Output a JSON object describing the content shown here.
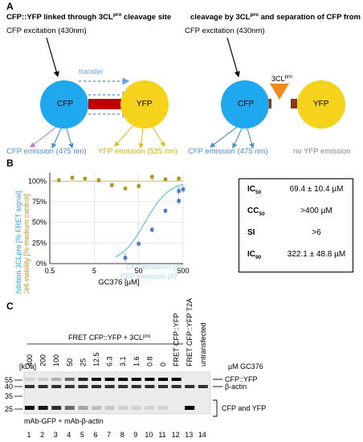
{
  "panel_a": {
    "label": "A",
    "left": {
      "title_pre": "CFP::YFP linked through 3CL",
      "title_sup": "pro",
      "title_post": " cleavage site",
      "excitation": "CFP excitation (430nm)",
      "transfer": "transfer",
      "cfp": "CFP",
      "yfp": "YFP",
      "cfp_emission": "CFP emission (475 nm)",
      "yfp_emission": "YFP emission (525 nm)"
    },
    "right": {
      "title_pre": "cleavage by 3CL",
      "title_sup": "pro",
      "title_post": " and separation of CFP from YFP",
      "excitation": "CFP excitation (430nm)",
      "protease_main": "3CL",
      "protease_sup": "pro",
      "cfp": "CFP",
      "yfp": "YFP",
      "cfp_emission": "CFP emission (475 nm)",
      "no_yfp": "no YFP emission"
    },
    "colors": {
      "cfp": "#1fa8ee",
      "yfp": "#f5d31c",
      "linker": "#c00000",
      "protease": "#f08a1e",
      "stub": "#8a3b10"
    }
  },
  "panel_b": {
    "label": "B",
    "ylabel_left": "Inhibition 3CLpro [% FRET signal]",
    "ylabel_right": "Cell viability [% medium control]",
    "xlabel": "GC376 [µM]",
    "legend_1": "CFP emission (47",
    "legend_2": "CFP emission (47",
    "table": [
      {
        "k_main": "IC",
        "k_sub": "50",
        "v": "69.4 ± 10.4 µM"
      },
      {
        "k_main": "CC",
        "k_sub": "50",
        "v": ">400 µM"
      },
      {
        "k_main": "SI",
        "k_sub": "",
        "v": ">6"
      },
      {
        "k_main": "IC",
        "k_sub": "90",
        "v": "322.1 ± 48.8 µM"
      }
    ]
  },
  "chart_data": {
    "type": "scatter",
    "xscale": "log",
    "xlim": [
      0.5,
      500
    ],
    "ylim": [
      0,
      110
    ],
    "xticks": [
      "0.5",
      "5",
      "50",
      "500"
    ],
    "yticks": [
      "0%",
      "25%",
      "50%",
      "75%",
      "100%"
    ],
    "xlabel": "GC376 [µM]",
    "ylabel": "Inhibition 3CLpro [% FRET signal]",
    "ylabel_right": "Cell viability [% medium control]",
    "grid": true,
    "series": [
      {
        "name": "",
        "color": "#4a7cc9",
        "x": [
          25,
          50,
          100,
          200,
          400
        ],
        "y": [
          7,
          24,
          41,
          64,
          76
        ],
        "err": [
          5,
          3,
          3,
          3,
          4
        ]
      },
      {
        "name": "",
        "color": "#b5941c",
        "x": [
          0.8,
          1.6,
          3.1,
          6.3,
          12.5,
          25,
          50,
          100,
          200,
          400
        ],
        "y": [
          101,
          104,
          103,
          101,
          95,
          91,
          94,
          105,
          102,
          103
        ],
        "err": [
          3,
          3,
          2,
          3,
          3,
          2,
          3,
          4,
          2,
          3
        ]
      },
      {
        "name": "",
        "color": "#4a7cc9",
        "x": [
          400,
          500
        ],
        "y": [
          88,
          90
        ],
        "err": [
          5,
          4
        ]
      }
    ]
  },
  "panel_c": {
    "label": "C",
    "top_group": "FRET CFP::YFP + 3CL",
    "top_group_sup": "pro",
    "concentrations": [
      "400",
      "200",
      "100",
      "50",
      "25",
      "12.5",
      "6.3",
      "3.1",
      "1.6",
      "0.8",
      "0"
    ],
    "extra_lanes": [
      "FRET CFP::YFP",
      "FRET CFP::YFP T2A",
      "untransfected"
    ],
    "kda_label": "[kDa]",
    "markers": [
      "55",
      "40",
      "35",
      "25"
    ],
    "unit": "µM GC376",
    "band_labels": [
      "CFP::YFP",
      "β-actin",
      "CFP and YFP"
    ],
    "antibodies": "mAb-GFP + mAb-β-actin",
    "lane_numbers": [
      "1",
      "2",
      "3",
      "4",
      "5",
      "6",
      "7",
      "8",
      "9",
      "10",
      "11",
      "12",
      "13",
      "14"
    ]
  }
}
